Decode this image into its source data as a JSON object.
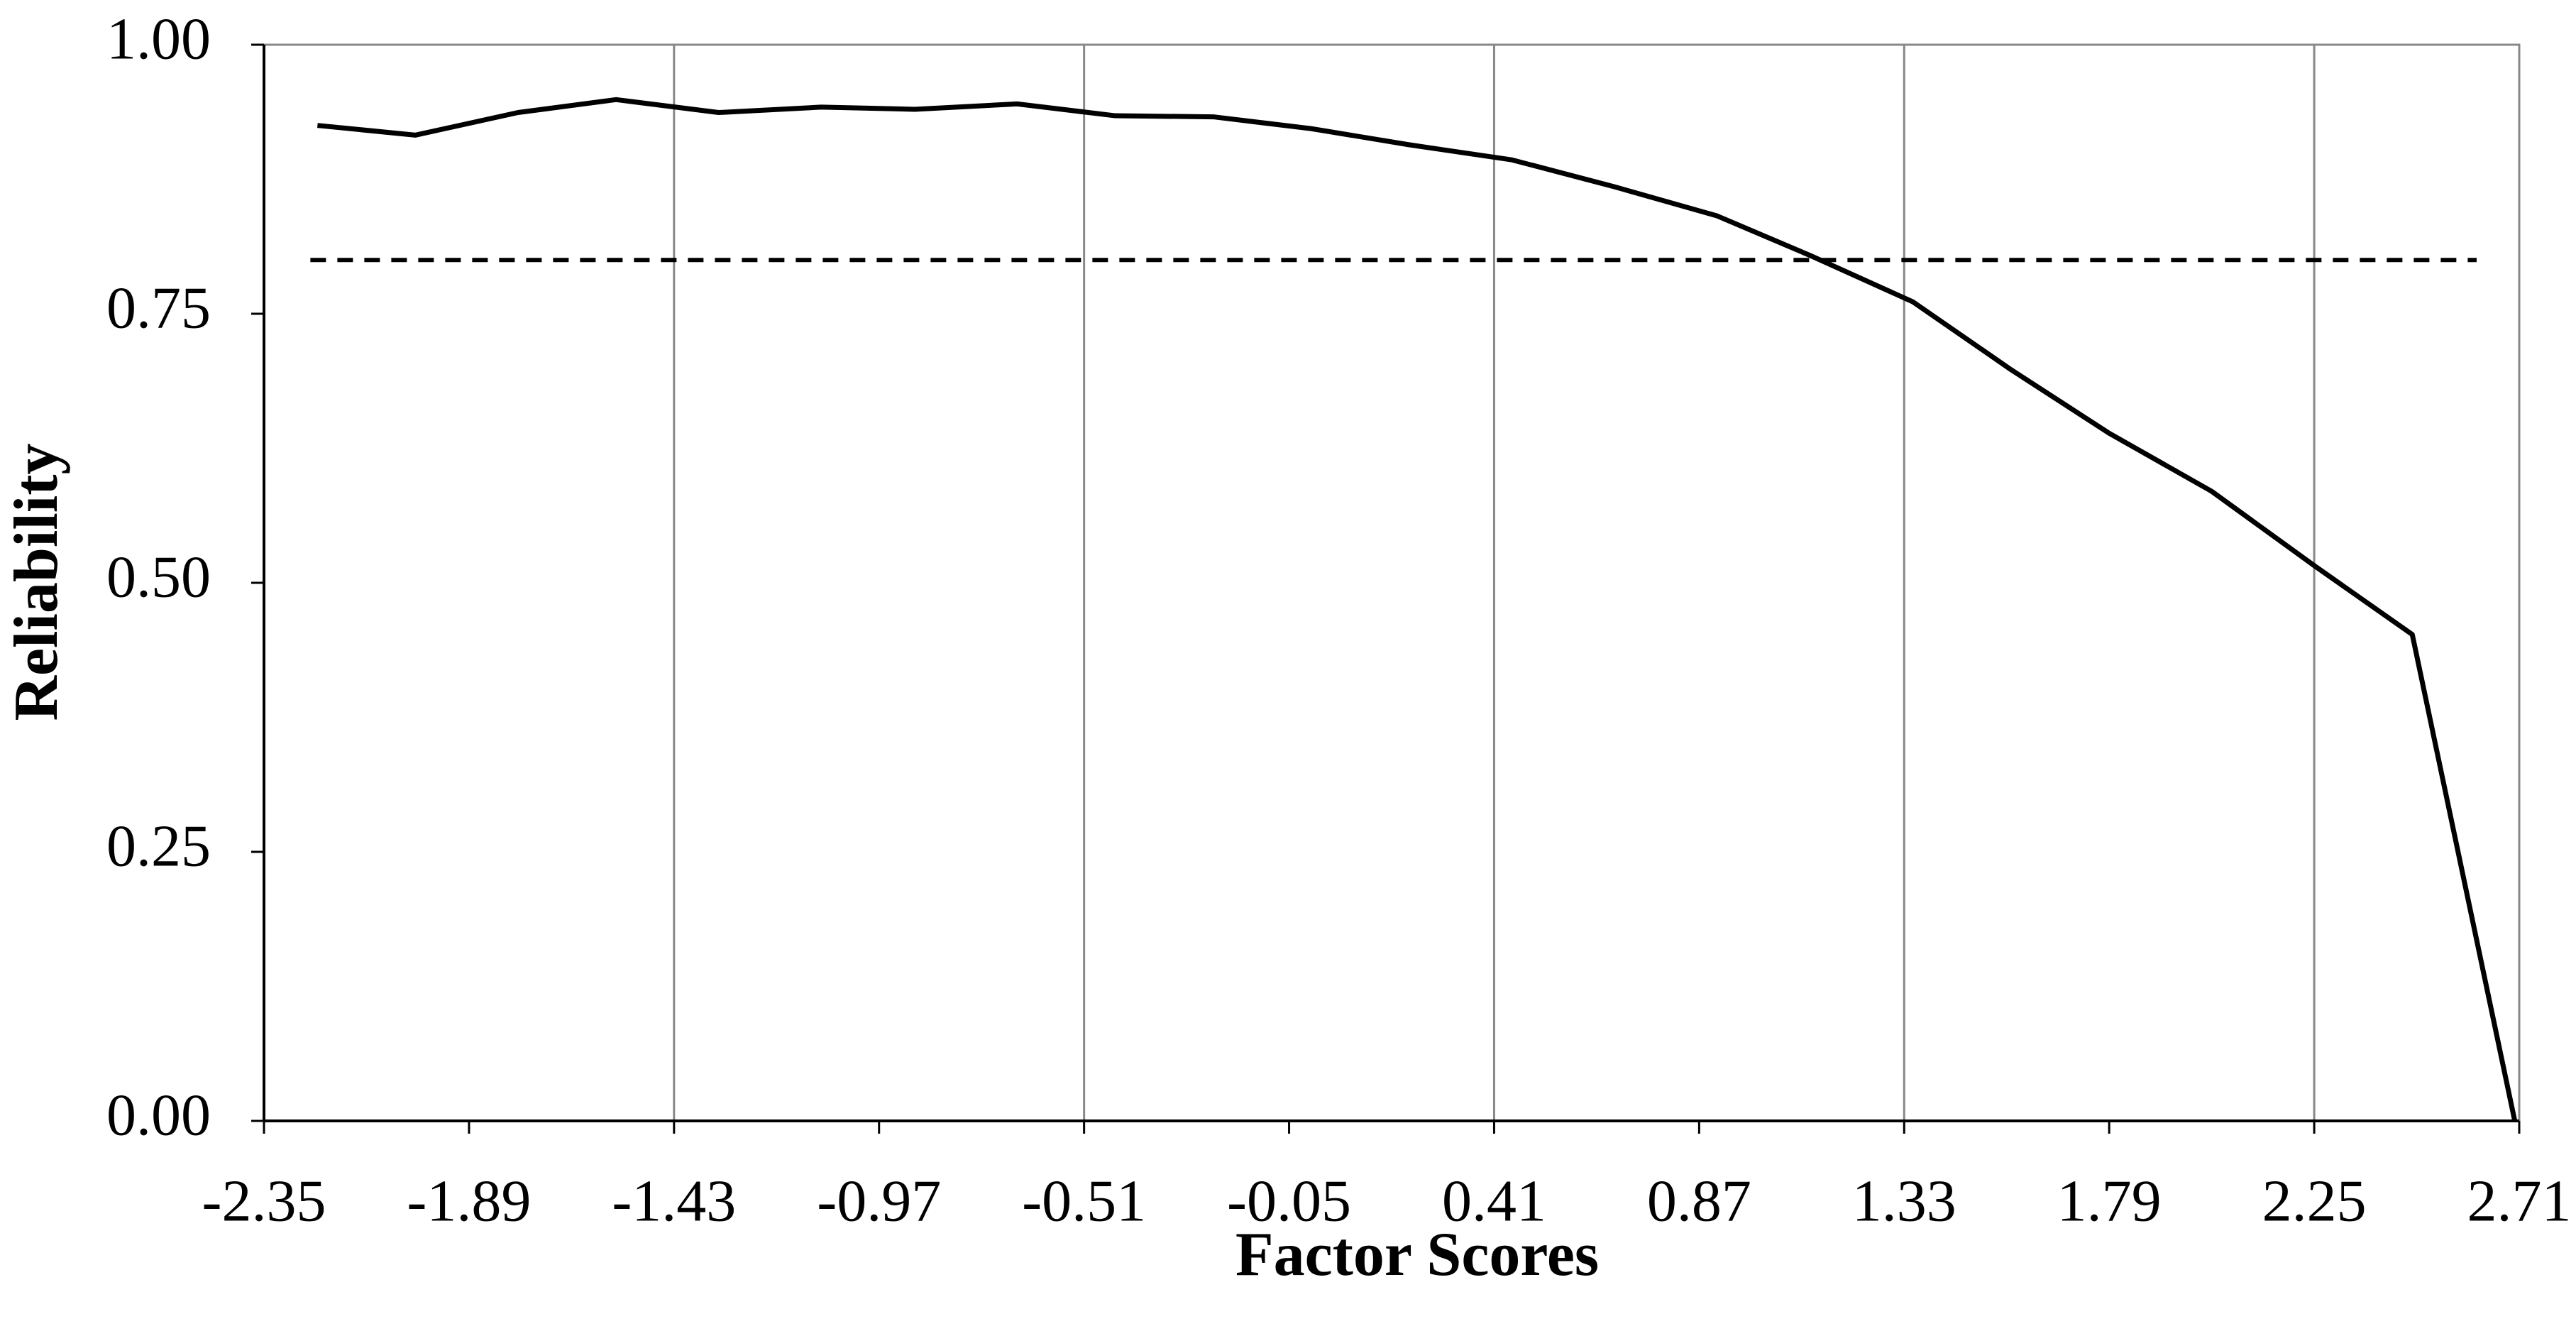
{
  "chart_data": {
    "type": "line",
    "x_label": "Factor Scores",
    "y_label": "Reliability",
    "x": [
      -2.23,
      -2.01,
      -1.78,
      -1.56,
      -1.33,
      -1.1,
      -0.89,
      -0.66,
      -0.44,
      -0.22,
      0.0,
      0.22,
      0.45,
      0.68,
      0.91,
      1.12,
      1.35,
      1.57,
      1.79,
      2.02,
      2.25,
      2.47,
      2.7
    ],
    "series": [
      {
        "color": "#000000",
        "values": [
          0.925,
          0.916,
          0.937,
          0.949,
          0.937,
          0.942,
          0.94,
          0.945,
          0.934,
          0.933,
          0.922,
          0.907,
          0.893,
          0.868,
          0.841,
          0.804,
          0.761,
          0.698,
          0.639,
          0.585,
          0.516,
          0.452,
          0.0
        ]
      }
    ],
    "reference_line": {
      "value": 0.8,
      "style": "dashed",
      "color": "#000000"
    },
    "xlim": [
      -2.35,
      2.71
    ],
    "xticks": [
      -2.35,
      -1.89,
      -1.43,
      -0.97,
      -0.51,
      -0.05,
      0.41,
      0.87,
      1.33,
      1.79,
      2.25,
      2.71
    ],
    "ylim": [
      0,
      1
    ],
    "yticks": [
      {
        "value": 0,
        "label": "0.00"
      },
      0.25,
      {
        "value": 0.5,
        "label": "0.50"
      },
      0.75,
      {
        "value": 1,
        "label": "1.00"
      }
    ],
    "grid": true
  }
}
